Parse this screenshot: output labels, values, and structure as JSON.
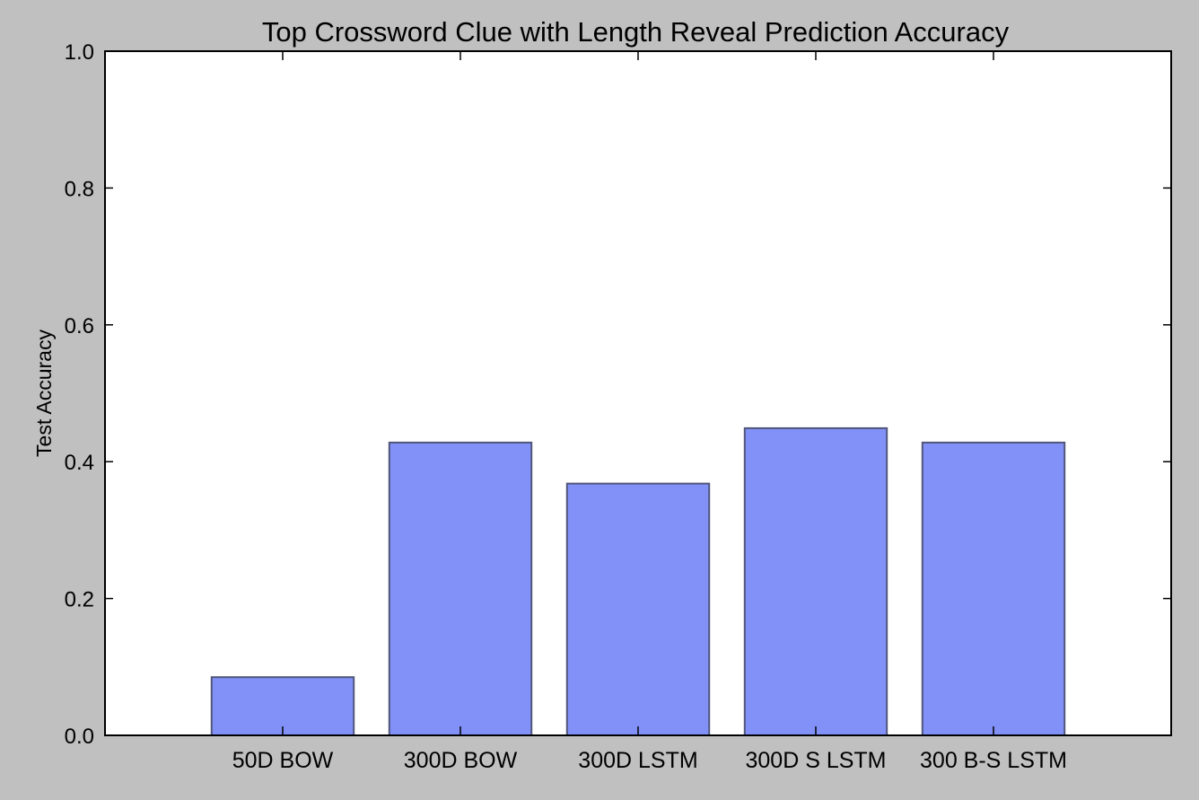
{
  "chart_data": {
    "type": "bar",
    "title": "Top Crossword Clue with Length Reveal Prediction Accuracy",
    "xlabel": "",
    "ylabel": "Test Accuracy",
    "categories": [
      "50D BOW",
      "300D BOW",
      "300D LSTM",
      "300D S LSTM",
      "300 B-S LSTM"
    ],
    "values": [
      0.085,
      0.428,
      0.368,
      0.449,
      0.428
    ],
    "ylim": [
      0,
      1
    ],
    "yticks": [
      0,
      0.2,
      0.4,
      0.6,
      0.8,
      1
    ],
    "ytick_labels": [
      "0.0",
      "0.2",
      "0.4",
      "0.6",
      "0.8",
      "1.0"
    ],
    "grid": false,
    "legend": "none",
    "colors": {
      "bar_fill": "#8191f8",
      "bar_stroke": "#50567a",
      "background": "#c0c0c0",
      "plot_background": "#ffffff"
    }
  }
}
